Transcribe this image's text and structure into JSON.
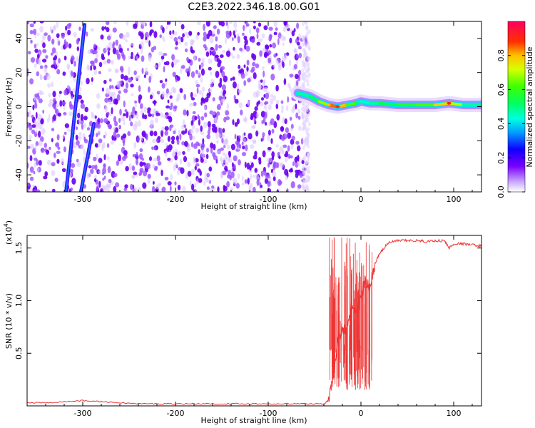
{
  "title": "C2E3.2022.346.18.00.G01",
  "chart_data": [
    {
      "type": "heatmap",
      "xlabel": "Height of straight line (km)",
      "ylabel": "Frequency (Hz)",
      "xlim": [
        -360,
        130
      ],
      "ylim": [
        -50,
        50
      ],
      "x_ticks": [
        -300,
        -200,
        -100,
        0,
        100
      ],
      "x_tick_labels": [
        "-300",
        "-200",
        "-100",
        "0",
        "100"
      ],
      "y_ticks": [
        -40,
        -20,
        0,
        20,
        40
      ],
      "y_tick_labels": [
        "-40",
        "-20",
        "0",
        "20",
        "40"
      ],
      "noise_region_x": [
        -360,
        -57
      ],
      "streak_1": {
        "x": [
          -318,
          -298
        ],
        "y": [
          -50,
          48
        ]
      },
      "streak_2": {
        "x": [
          -302,
          -288
        ],
        "y": [
          -50,
          -10
        ]
      },
      "ridge": {
        "x": [
          -68,
          -55,
          -45,
          -35,
          -25,
          -15,
          -5,
          0,
          10,
          20,
          40,
          60,
          80,
          95,
          110,
          130
        ],
        "y": [
          8,
          6,
          3,
          1,
          0,
          1,
          2,
          3,
          2,
          2,
          1,
          1,
          1,
          2,
          1,
          1
        ],
        "amplitude": [
          0.45,
          0.5,
          0.55,
          0.8,
          0.9,
          0.7,
          0.55,
          0.45,
          0.45,
          0.5,
          0.55,
          0.6,
          0.65,
          0.9,
          0.5,
          0.45
        ]
      },
      "colorbar": {
        "label": "Normalized spectral amplitude",
        "range": [
          0,
          1
        ],
        "ticks": [
          0.0,
          0.2,
          0.4,
          0.6,
          0.8
        ],
        "tick_labels": [
          "0.0",
          "0.2",
          "0.4",
          "0.6",
          "0.8"
        ]
      }
    },
    {
      "type": "line",
      "xlabel": "Height of straight line (km)",
      "ylabel": "SNR (10 * v/v)",
      "yscale_label": "(x10",
      "yscale_exp": "4",
      "yscale_close": ")",
      "xlim": [
        -360,
        130
      ],
      "ylim": [
        0,
        1.62
      ],
      "x_ticks": [
        -300,
        -200,
        -100,
        0,
        100
      ],
      "x_tick_labels": [
        "-300",
        "-200",
        "-100",
        "0",
        "100"
      ],
      "y_ticks": [
        0.5,
        1.0,
        1.5
      ],
      "y_tick_labels": [
        "0.5",
        "1.0",
        "1.5"
      ],
      "series": [
        {
          "color": "#ee3333",
          "x": [
            -360,
            -340,
            -320,
            -300,
            -280,
            -260,
            -240,
            -220,
            -200,
            -180,
            -160,
            -140,
            -120,
            -100,
            -80,
            -60,
            -40,
            -35,
            -30,
            -25,
            -20,
            -15,
            -10,
            -5,
            0,
            5,
            10,
            15,
            20,
            25,
            30,
            40,
            50,
            60,
            70,
            80,
            90,
            95,
            100,
            110,
            120,
            130
          ],
          "values": [
            0.03,
            0.03,
            0.04,
            0.05,
            0.04,
            0.03,
            0.02,
            0.02,
            0.02,
            0.02,
            0.02,
            0.02,
            0.02,
            0.02,
            0.02,
            0.02,
            0.02,
            0.05,
            0.3,
            0.6,
            0.75,
            0.7,
            0.95,
            0.85,
            1.05,
            1.2,
            1.1,
            1.35,
            1.45,
            1.5,
            1.55,
            1.57,
            1.57,
            1.57,
            1.56,
            1.57,
            1.57,
            1.5,
            1.54,
            1.54,
            1.53,
            1.52
          ],
          "noise_band": {
            "x_from": -35,
            "x_to": 12,
            "min": 0.15,
            "max": 1.6
          }
        }
      ]
    }
  ]
}
